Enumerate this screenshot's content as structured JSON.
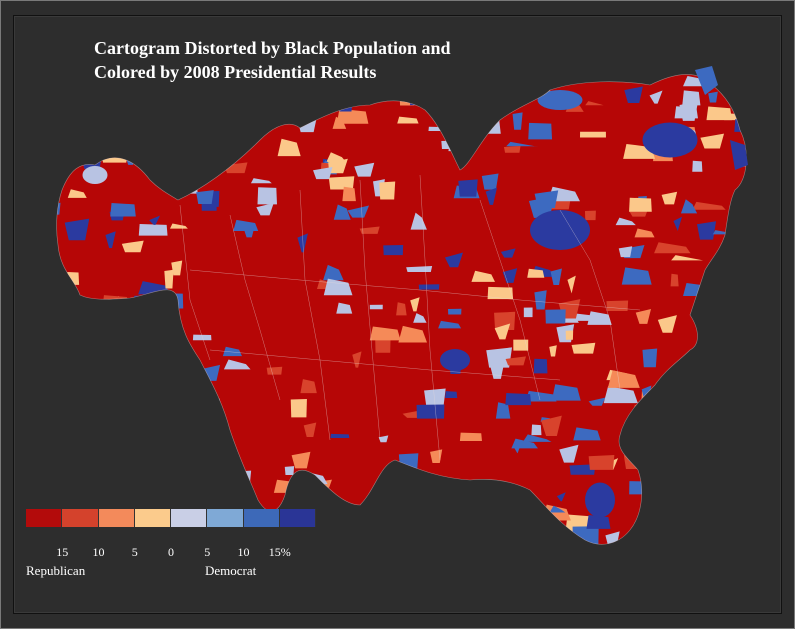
{
  "title_lines": [
    "Cartogram Distorted by Black Population and",
    "Colored by 2008 Presidential Results"
  ],
  "legend": {
    "colors": [
      "#b30b0b",
      "#d4422c",
      "#f38a5b",
      "#fbcb8c",
      "#c9cfe6",
      "#7fa9d6",
      "#3d69b8",
      "#2a3596"
    ],
    "ticks": [
      "15",
      "10",
      "5",
      "0",
      "5",
      "10",
      "15%"
    ],
    "left_label": "Republican",
    "right_label": "Democrat"
  },
  "map_colors": {
    "base": "#b60606",
    "blue_dark": "#2b3aa0",
    "blue_mid": "#3d6ac0",
    "blue_light": "#b8c3e3",
    "orange": "#f58a58",
    "peach": "#fbc88a",
    "red_mid": "#d8432c"
  }
}
